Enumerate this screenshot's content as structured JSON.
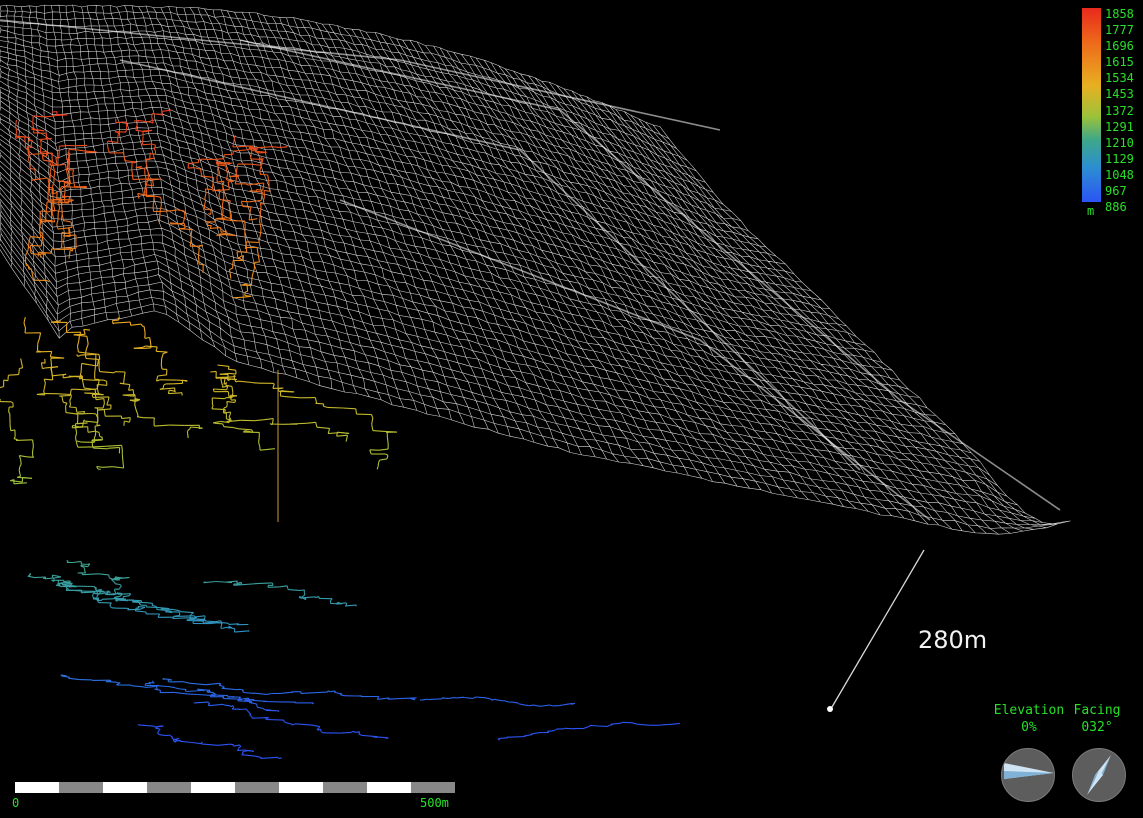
{
  "viewer": {
    "color_legend": {
      "ticks": [
        "1858",
        "1777",
        "1696",
        "1615",
        "1534",
        "1453",
        "1372",
        "1291",
        "1210",
        "1129",
        "1048",
        "967",
        "886"
      ],
      "unit": "m"
    },
    "measurement_label": "280m",
    "scale_bar": {
      "start_label": "0",
      "end_label": "500m"
    },
    "elevation": {
      "label": "Elevation",
      "value": "0%"
    },
    "facing": {
      "label": "Facing",
      "value": "032°"
    },
    "colors": {
      "background": "#000000",
      "hud_text": "#28e028",
      "mesh": "#ffffff",
      "survey_high": "#e8291c",
      "survey_mid": "#e7b021",
      "survey_low": "#2b54f5"
    },
    "icons": [
      "elevation-dial-icon",
      "compass-dial-icon"
    ]
  }
}
